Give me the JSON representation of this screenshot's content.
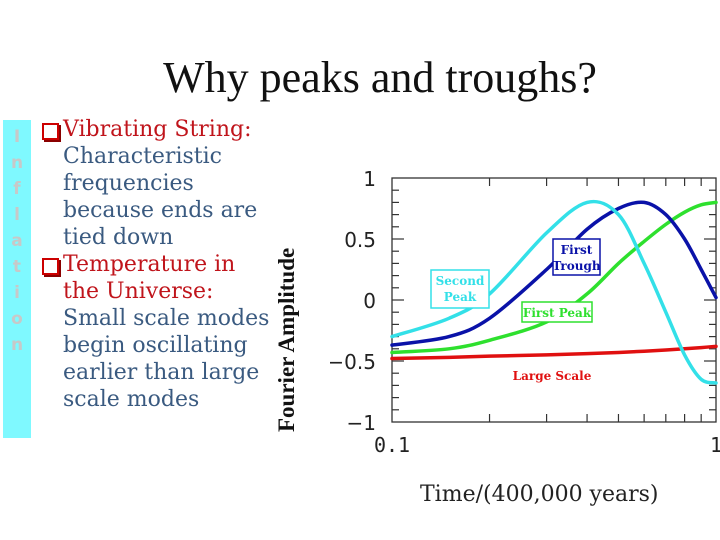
{
  "slide": {
    "title": "Why peaks and troughs?",
    "sidebar_label": [
      "I",
      "n",
      "f",
      "l",
      "a",
      "t",
      "i",
      "o",
      "n"
    ],
    "bullets": [
      {
        "heading": "Vibrating String:",
        "body": "Characteristic frequencies because ends are tied down"
      },
      {
        "heading": "Temperature in the Universe:",
        "body": "Small scale modes begin oscillating earlier than large scale modes"
      }
    ],
    "colors": {
      "sidebar": "#7ff9ff",
      "heading": "#c0141b",
      "body": "#3a5a80",
      "bullet_box": "#cc0000"
    }
  },
  "chart_data": {
    "type": "line",
    "title": "",
    "xlabel": "Time/(400,000 years)",
    "ylabel": "Fourier Amplitude",
    "xscale": "log",
    "xlim": [
      0.1,
      1
    ],
    "ylim": [
      -1,
      1
    ],
    "x_tick_labels": [
      "0.1",
      "1"
    ],
    "y_tick_labels": [
      "1",
      "0.5",
      "0",
      "-0.5",
      "-1"
    ],
    "grid": false,
    "x": [
      0.1,
      0.15,
      0.2,
      0.3,
      0.4,
      0.5,
      0.6,
      0.7,
      0.8,
      0.9,
      1.0
    ],
    "series": [
      {
        "name": "Second Peak",
        "color": "#33e0e8",
        "values": [
          -0.3,
          -0.15,
          0.05,
          0.55,
          0.8,
          0.7,
          0.3,
          -0.1,
          -0.45,
          -0.65,
          -0.68
        ]
      },
      {
        "name": "First Trough",
        "color": "#0a12a8",
        "values": [
          -0.37,
          -0.3,
          -0.15,
          0.25,
          0.58,
          0.75,
          0.8,
          0.7,
          0.5,
          0.25,
          0.02
        ]
      },
      {
        "name": "First Peak",
        "color": "#2ee02e",
        "values": [
          -0.43,
          -0.4,
          -0.33,
          -0.18,
          0.05,
          0.3,
          0.48,
          0.62,
          0.72,
          0.78,
          0.8
        ]
      },
      {
        "name": "Large Scale",
        "color": "#e01010",
        "values": [
          -0.48,
          -0.47,
          -0.46,
          -0.45,
          -0.44,
          -0.43,
          -0.42,
          -0.41,
          -0.4,
          -0.39,
          -0.38
        ]
      }
    ],
    "annotations": [
      {
        "text": "Second Peak",
        "lines": [
          "Second",
          "Peak"
        ],
        "color": "#33e0e8"
      },
      {
        "text": "First Trough",
        "lines": [
          "First",
          "Trough"
        ],
        "color": "#0a12a8"
      },
      {
        "text": "First Peak",
        "lines": [
          "First Peak"
        ],
        "color": "#2ee02e"
      },
      {
        "text": "Large Scale",
        "lines": [
          "Large Scale"
        ],
        "color": "#e01010"
      }
    ]
  }
}
